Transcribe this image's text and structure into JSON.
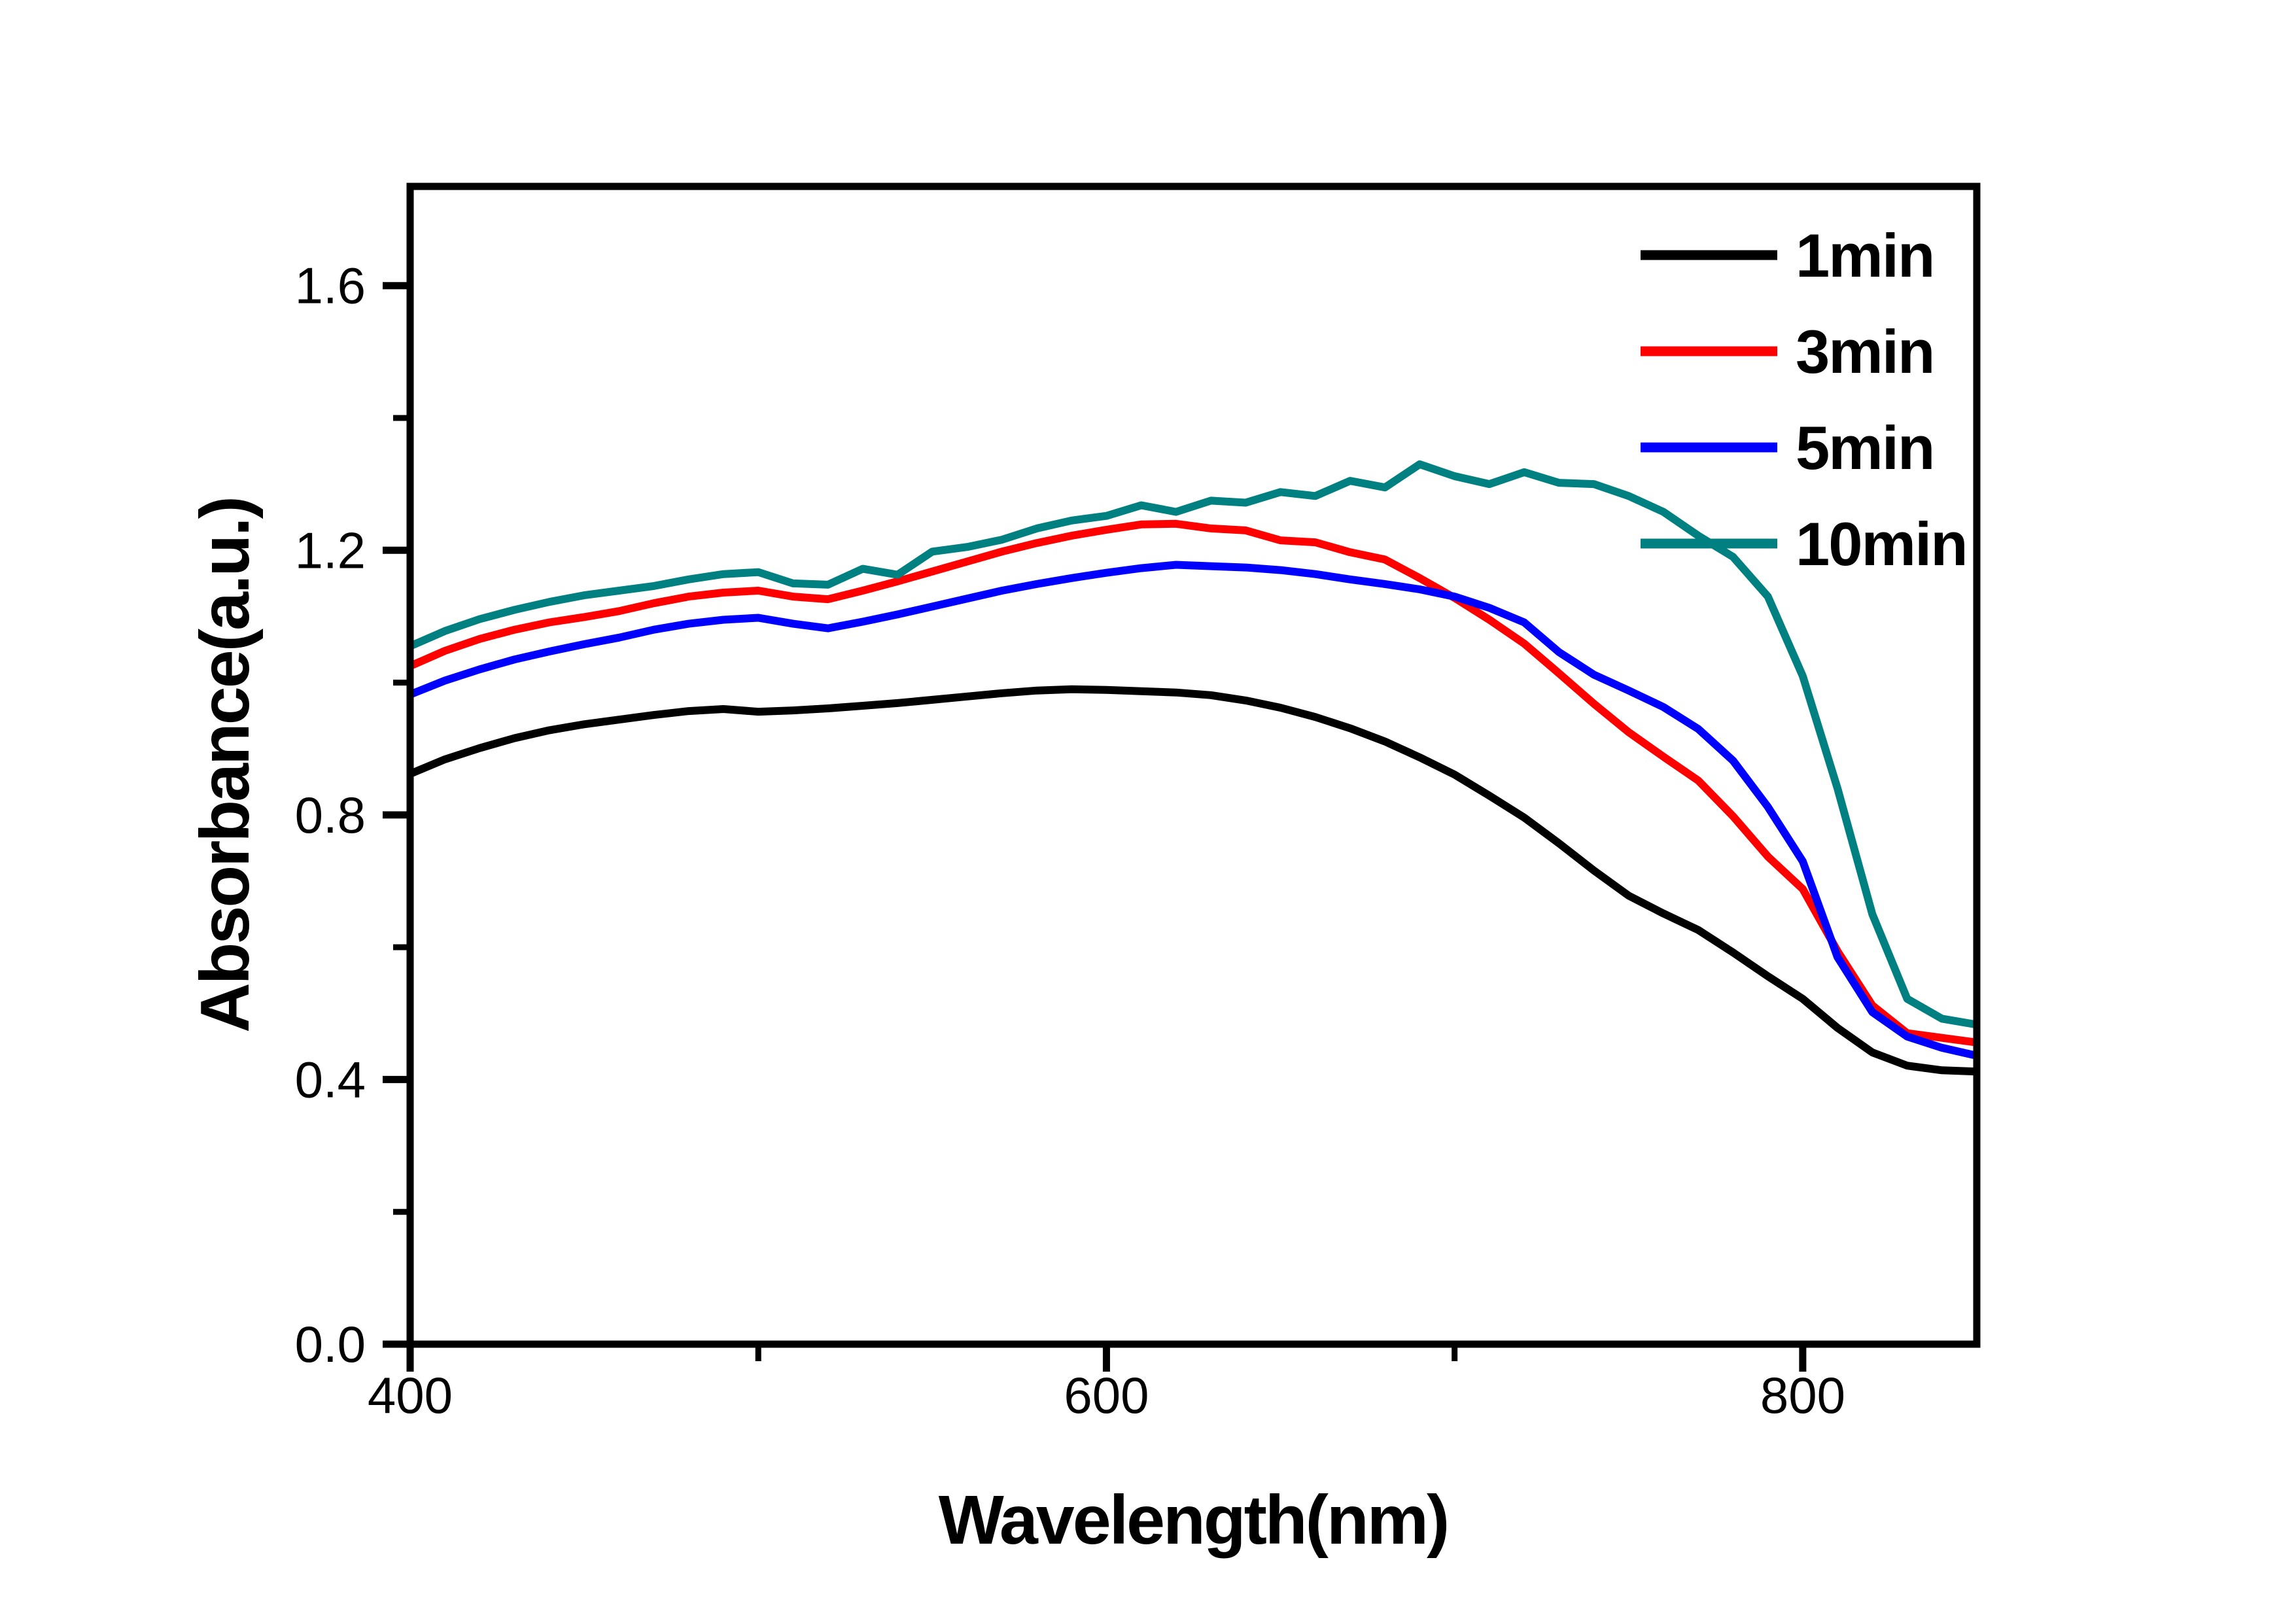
{
  "figure": {
    "background_color": "#ffffff",
    "axis_color": "#000000"
  },
  "chart_data": {
    "type": "line",
    "title": "",
    "xlabel": "Wavelength(nm)",
    "ylabel": "Absorbance(a.u.)",
    "xlim": [
      400,
      850
    ],
    "ylim": [
      0,
      1.75
    ],
    "grid": false,
    "legend_position": "top-right",
    "x_major_ticks": [
      400,
      600,
      800
    ],
    "x_minor_ticks": [
      500,
      700
    ],
    "x_tick_labels": [
      "400",
      "600",
      "800"
    ],
    "y_major_ticks": [
      0.0,
      0.4,
      0.8,
      1.2,
      1.6
    ],
    "y_minor_ticks": [
      0.2,
      0.6,
      1.0,
      1.4
    ],
    "y_tick_labels": [
      "0.0",
      "0.4",
      "0.8",
      "1.2",
      "1.6"
    ],
    "x": [
      400,
      410,
      420,
      430,
      440,
      450,
      460,
      470,
      480,
      490,
      500,
      510,
      520,
      530,
      540,
      550,
      560,
      570,
      580,
      590,
      600,
      610,
      620,
      630,
      640,
      650,
      660,
      670,
      680,
      690,
      700,
      710,
      720,
      730,
      740,
      750,
      760,
      770,
      780,
      790,
      800,
      810,
      820,
      830,
      840,
      850
    ],
    "series": [
      {
        "name": "1min",
        "color": "#000000",
        "values": [
          0.862,
          0.884,
          0.901,
          0.916,
          0.928,
          0.937,
          0.944,
          0.951,
          0.957,
          0.96,
          0.956,
          0.958,
          0.961,
          0.965,
          0.969,
          0.974,
          0.979,
          0.984,
          0.988,
          0.99,
          0.989,
          0.987,
          0.985,
          0.981,
          0.973,
          0.962,
          0.948,
          0.931,
          0.911,
          0.887,
          0.861,
          0.829,
          0.796,
          0.757,
          0.716,
          0.678,
          0.651,
          0.626,
          0.592,
          0.556,
          0.522,
          0.478,
          0.441,
          0.421,
          0.414,
          0.412
        ]
      },
      {
        "name": "3min",
        "color": "#ff0000",
        "values": [
          1.025,
          1.048,
          1.066,
          1.08,
          1.091,
          1.099,
          1.108,
          1.12,
          1.13,
          1.136,
          1.139,
          1.13,
          1.126,
          1.139,
          1.153,
          1.168,
          1.183,
          1.198,
          1.211,
          1.222,
          1.231,
          1.239,
          1.24,
          1.233,
          1.23,
          1.215,
          1.212,
          1.197,
          1.186,
          1.158,
          1.128,
          1.095,
          1.059,
          1.014,
          0.968,
          0.925,
          0.888,
          0.852,
          0.798,
          0.737,
          0.688,
          0.594,
          0.512,
          0.47,
          0.463,
          0.456
        ]
      },
      {
        "name": "5min",
        "color": "#0000ff",
        "values": [
          0.982,
          1.003,
          1.02,
          1.035,
          1.047,
          1.058,
          1.068,
          1.08,
          1.089,
          1.095,
          1.098,
          1.089,
          1.082,
          1.092,
          1.103,
          1.115,
          1.127,
          1.139,
          1.149,
          1.158,
          1.166,
          1.173,
          1.178,
          1.176,
          1.174,
          1.17,
          1.164,
          1.156,
          1.149,
          1.141,
          1.13,
          1.113,
          1.091,
          1.046,
          1.012,
          0.988,
          0.963,
          0.93,
          0.882,
          0.812,
          0.73,
          0.585,
          0.502,
          0.465,
          0.448,
          0.436
        ]
      },
      {
        "name": "10min",
        "color": "#008080",
        "values": [
          1.055,
          1.078,
          1.096,
          1.11,
          1.122,
          1.132,
          1.139,
          1.146,
          1.156,
          1.164,
          1.167,
          1.15,
          1.148,
          1.172,
          1.163,
          1.198,
          1.205,
          1.216,
          1.233,
          1.245,
          1.252,
          1.268,
          1.258,
          1.275,
          1.272,
          1.288,
          1.282,
          1.305,
          1.295,
          1.33,
          1.312,
          1.3,
          1.318,
          1.302,
          1.3,
          1.282,
          1.258,
          1.222,
          1.19,
          1.13,
          1.01,
          0.84,
          0.65,
          0.522,
          0.492,
          0.483
        ]
      }
    ]
  },
  "layout_constants_note": "plot box and styling live in template, not data"
}
